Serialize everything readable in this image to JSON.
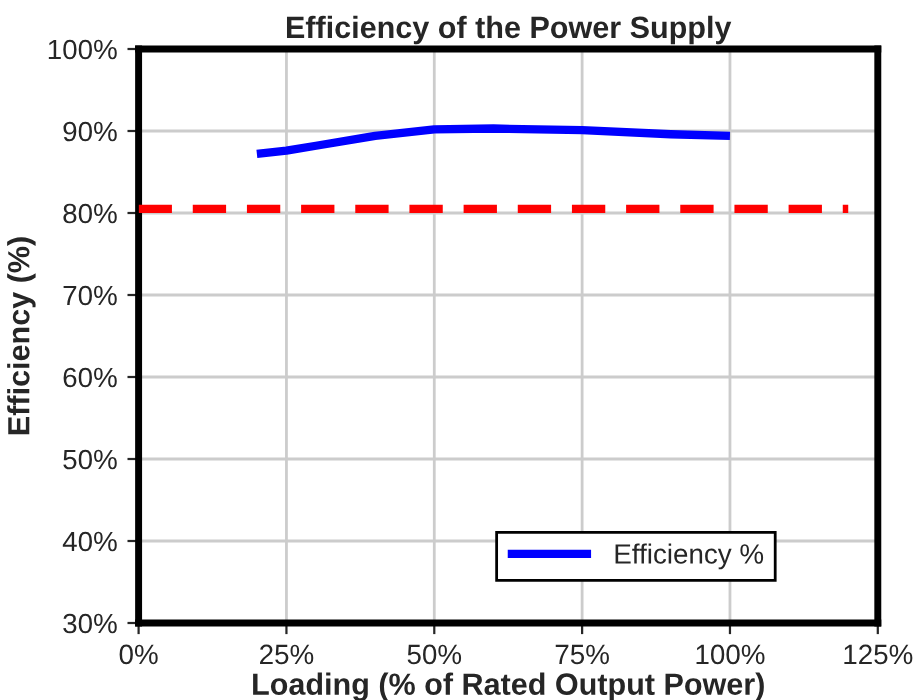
{
  "chart_data": {
    "type": "line",
    "title": "Efficiency of the Power Supply",
    "xlabel": "Loading (% of Rated Output Power)",
    "ylabel": "Efficiency (%)",
    "series": [
      {
        "name": "Efficiency %",
        "color": "#0000ff",
        "x": [
          20,
          25,
          30,
          40,
          50,
          60,
          75,
          90,
          100
        ],
        "values": [
          87.2,
          87.6,
          88.2,
          89.4,
          90.2,
          90.3,
          90.1,
          89.6,
          89.4
        ],
        "line_style": "solid"
      },
      {
        "color": "#ff0000",
        "x": [
          0,
          120
        ],
        "values": [
          80.5,
          80.5
        ],
        "line_style": "dashed"
      }
    ],
    "xlim": [
      0,
      125
    ],
    "xticks": [
      {
        "value": 0,
        "label": "0%"
      },
      {
        "value": 25,
        "label": "25%"
      },
      {
        "value": 50,
        "label": "50%"
      },
      {
        "value": 75,
        "label": "75%"
      },
      {
        "value": 100,
        "label": "100%"
      },
      {
        "value": 125,
        "label": "125%"
      }
    ],
    "ylim": [
      30,
      100
    ],
    "yticks": [
      {
        "value": 30,
        "label": "30%"
      },
      {
        "value": 40,
        "label": "40%"
      },
      {
        "value": 50,
        "label": "50%"
      },
      {
        "value": 60,
        "label": "60%"
      },
      {
        "value": 70,
        "label": "70%"
      },
      {
        "value": 80,
        "label": "80%"
      },
      {
        "value": 90,
        "label": "90%"
      },
      {
        "value": 100,
        "label": "100%"
      }
    ],
    "grid": true,
    "legend": "bottom right",
    "marker": "none"
  }
}
